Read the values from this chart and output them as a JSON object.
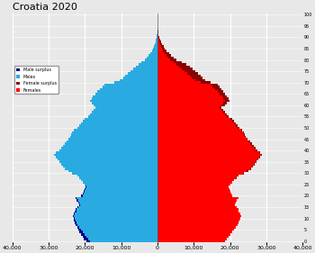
{
  "title": "Croatia 2020",
  "xlim": 40000,
  "xticks": [
    -40000,
    -30000,
    -20000,
    -10000,
    0,
    10000,
    20000,
    30000,
    40000
  ],
  "xticklabels": [
    "40,000",
    "30,000",
    "20,000",
    "10,000",
    "0",
    "10,000",
    "20,000",
    "30,000",
    "40,000"
  ],
  "male_color": "#29ABE2",
  "female_color": "#FF0000",
  "male_surplus_color": "#00008B",
  "female_surplus_color": "#8B0000",
  "background_color": "#E8E8E8",
  "grid_color": "#FFFFFF",
  "ages": [
    0,
    1,
    2,
    3,
    4,
    5,
    6,
    7,
    8,
    9,
    10,
    11,
    12,
    13,
    14,
    15,
    16,
    17,
    18,
    19,
    20,
    21,
    22,
    23,
    24,
    25,
    26,
    27,
    28,
    29,
    30,
    31,
    32,
    33,
    34,
    35,
    36,
    37,
    38,
    39,
    40,
    41,
    42,
    43,
    44,
    45,
    46,
    47,
    48,
    49,
    50,
    51,
    52,
    53,
    54,
    55,
    56,
    57,
    58,
    59,
    60,
    61,
    62,
    63,
    64,
    65,
    66,
    67,
    68,
    69,
    70,
    71,
    72,
    73,
    74,
    75,
    76,
    77,
    78,
    79,
    80,
    81,
    82,
    83,
    84,
    85,
    86,
    87,
    88,
    89,
    90,
    91,
    92,
    93,
    94,
    95,
    96,
    97,
    98,
    99,
    100
  ],
  "males": [
    19500,
    20200,
    20500,
    21000,
    21500,
    21800,
    22100,
    22500,
    22800,
    23000,
    23100,
    23200,
    23000,
    22800,
    22500,
    22000,
    21500,
    21800,
    22200,
    22500,
    21000,
    20500,
    20200,
    20000,
    19800,
    20100,
    20500,
    21000,
    21500,
    22000,
    23500,
    24500,
    25500,
    26000,
    26500,
    27000,
    27500,
    28000,
    28500,
    28000,
    27000,
    26500,
    26000,
    25500,
    25000,
    24500,
    24000,
    23800,
    23500,
    23000,
    22000,
    21500,
    21000,
    20500,
    20000,
    19000,
    18500,
    18000,
    17500,
    17000,
    17500,
    18000,
    18500,
    18200,
    17800,
    17000,
    16500,
    15800,
    15200,
    14500,
    12000,
    10500,
    9500,
    8800,
    8200,
    7500,
    6800,
    6000,
    5300,
    4500,
    3500,
    2900,
    2400,
    1900,
    1500,
    1200,
    950,
    750,
    550,
    380,
    250,
    160,
    100,
    65,
    40,
    22,
    12,
    6,
    3,
    1,
    0
  ],
  "females": [
    18500,
    19000,
    19500,
    20000,
    20500,
    21000,
    21500,
    22000,
    22300,
    22600,
    22800,
    23000,
    22700,
    22400,
    22200,
    21700,
    21200,
    21500,
    21800,
    22200,
    20500,
    20200,
    20000,
    19700,
    19500,
    20000,
    20500,
    21000,
    21700,
    22200,
    23800,
    24900,
    25800,
    26300,
    26800,
    27200,
    27800,
    28200,
    28700,
    28300,
    27500,
    27000,
    26500,
    26000,
    25400,
    24800,
    24300,
    24000,
    23700,
    23200,
    22500,
    22000,
    21500,
    21000,
    20500,
    19500,
    19000,
    18500,
    18100,
    17700,
    18500,
    19200,
    19800,
    19600,
    19200,
    18500,
    18200,
    17500,
    17000,
    16500,
    14500,
    13200,
    12500,
    11800,
    11200,
    10500,
    9700,
    8800,
    7900,
    6800,
    5300,
    4500,
    3800,
    3100,
    2600,
    2100,
    1700,
    1350,
    1000,
    720,
    490,
    320,
    210,
    140,
    90,
    52,
    28,
    14,
    7,
    3,
    1
  ]
}
